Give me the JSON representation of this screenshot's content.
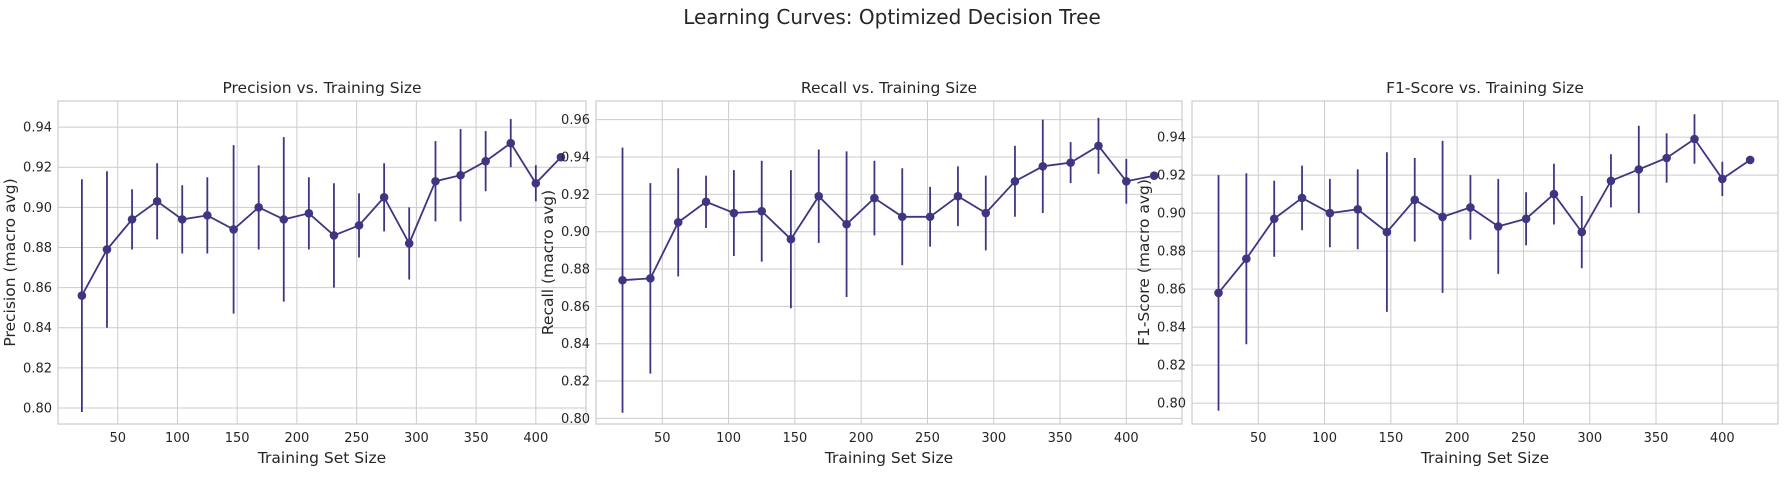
{
  "figure": {
    "suptitle": "Learning Curves: Optimized Decision Tree",
    "line_color": "#3f3682"
  },
  "chart_data": [
    {
      "type": "line",
      "title": "Precision vs. Training Size",
      "xlabel": "Training Set Size",
      "ylabel": "Precision (macro avg)",
      "xlim": [
        0,
        442
      ],
      "ylim": [
        0.792,
        0.953
      ],
      "xticks": [
        50,
        100,
        150,
        200,
        250,
        300,
        350,
        400
      ],
      "yticks": [
        0.8,
        0.82,
        0.84,
        0.86,
        0.88,
        0.9,
        0.92,
        0.94
      ],
      "grid": true,
      "x": [
        20,
        41,
        62,
        83,
        104,
        125,
        147,
        168,
        189,
        210,
        231,
        252,
        273,
        294,
        316,
        337,
        358,
        379,
        400,
        421
      ],
      "y": [
        0.856,
        0.879,
        0.894,
        0.903,
        0.894,
        0.896,
        0.889,
        0.9,
        0.894,
        0.897,
        0.886,
        0.891,
        0.905,
        0.882,
        0.913,
        0.916,
        0.923,
        0.932,
        0.912,
        0.925
      ],
      "err": [
        0.058,
        0.039,
        0.015,
        0.019,
        0.017,
        0.019,
        0.042,
        0.021,
        0.041,
        0.018,
        0.026,
        0.016,
        0.017,
        0.018,
        0.02,
        0.023,
        0.015,
        0.012,
        0.009,
        0.0
      ]
    },
    {
      "type": "line",
      "title": "Recall vs. Training Size",
      "xlabel": "Training Set Size",
      "ylabel": "Recall (macro avg)",
      "xlim": [
        0,
        442
      ],
      "ylim": [
        0.797,
        0.97
      ],
      "xticks": [
        50,
        100,
        150,
        200,
        250,
        300,
        350,
        400
      ],
      "yticks": [
        0.8,
        0.82,
        0.84,
        0.86,
        0.88,
        0.9,
        0.92,
        0.94,
        0.96
      ],
      "grid": true,
      "x": [
        20,
        41,
        62,
        83,
        104,
        125,
        147,
        168,
        189,
        210,
        231,
        252,
        273,
        294,
        316,
        337,
        358,
        379,
        400,
        421
      ],
      "y": [
        0.874,
        0.875,
        0.905,
        0.916,
        0.91,
        0.911,
        0.896,
        0.919,
        0.904,
        0.918,
        0.908,
        0.908,
        0.919,
        0.91,
        0.927,
        0.935,
        0.937,
        0.946,
        0.927,
        0.93
      ],
      "err": [
        0.071,
        0.051,
        0.029,
        0.014,
        0.023,
        0.027,
        0.037,
        0.025,
        0.039,
        0.02,
        0.026,
        0.016,
        0.016,
        0.02,
        0.019,
        0.025,
        0.011,
        0.015,
        0.012,
        0.0
      ]
    },
    {
      "type": "line",
      "title": "F1-Score vs. Training Size",
      "xlabel": "Training Set Size",
      "ylabel": "F1-Score (macro avg)",
      "xlim": [
        0,
        442
      ],
      "ylim": [
        0.789,
        0.959
      ],
      "xticks": [
        50,
        100,
        150,
        200,
        250,
        300,
        350,
        400
      ],
      "yticks": [
        0.8,
        0.82,
        0.84,
        0.86,
        0.88,
        0.9,
        0.92,
        0.94
      ],
      "grid": true,
      "x": [
        20,
        41,
        62,
        83,
        104,
        125,
        147,
        168,
        189,
        210,
        231,
        252,
        273,
        294,
        316,
        337,
        358,
        379,
        400,
        421
      ],
      "y": [
        0.858,
        0.876,
        0.897,
        0.908,
        0.9,
        0.902,
        0.89,
        0.907,
        0.898,
        0.903,
        0.893,
        0.897,
        0.91,
        0.89,
        0.917,
        0.923,
        0.929,
        0.939,
        0.918,
        0.928
      ],
      "err": [
        0.062,
        0.045,
        0.02,
        0.017,
        0.018,
        0.021,
        0.042,
        0.022,
        0.04,
        0.017,
        0.025,
        0.014,
        0.016,
        0.019,
        0.014,
        0.023,
        0.013,
        0.013,
        0.009,
        0.0
      ]
    }
  ]
}
